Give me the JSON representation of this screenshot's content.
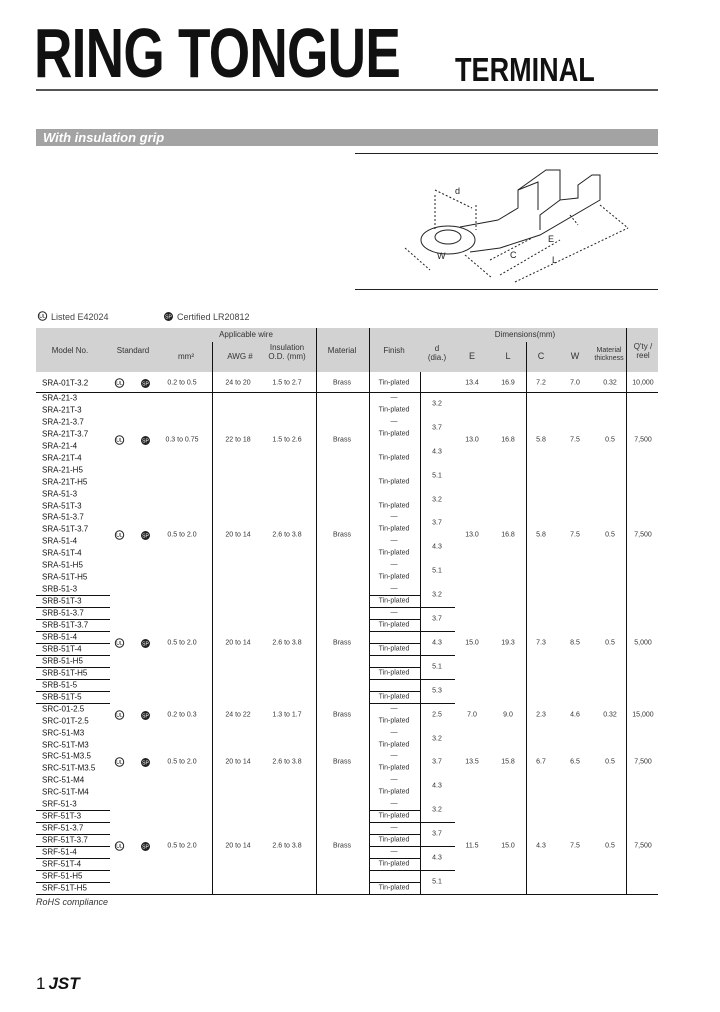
{
  "header": {
    "title": "RING TONGUE",
    "subtitle": "TERMINAL"
  },
  "section": {
    "label": "With insulation grip"
  },
  "figure": {
    "labels": {
      "d": "d",
      "C": "C",
      "E": "E",
      "L": "L",
      "W": "W"
    }
  },
  "legend": {
    "ul": "Listed E42024",
    "csa": "Certified LR20812"
  },
  "table": {
    "headers": {
      "model": "Model No.",
      "standard": "Standard",
      "wire_group": "Applicable wire",
      "mm2": "mm²",
      "awg": "AWG #",
      "insulation": "Insulation O.D. (mm)",
      "material": "Material",
      "finish": "Finish",
      "dims_group": "Dimensions(mm)",
      "d": "d (dia.)",
      "E": "E",
      "L": "L",
      "C": "C",
      "W": "W",
      "thickness": "Material thickness",
      "qty": "Q'ty / reel"
    },
    "first_row": {
      "model": "SRA-01T-3.2",
      "standard": [
        "UL",
        "CSA"
      ],
      "mm2": "0.2 to 0.5",
      "awg": "24 to 20",
      "insulation": "1.5 to 2.7",
      "material": "Brass",
      "finish": "Tin-plated",
      "E": "13.4",
      "L": "16.9",
      "C": "7.2",
      "W": "7.0",
      "thickness": "0.32",
      "qty": "10,000"
    },
    "groups": [
      {
        "standard": [
          "UL",
          "CSA"
        ],
        "mm2": "0.3 to 0.75",
        "awg": "22 to 18",
        "insulation": "1.5 to 2.6",
        "material": "Brass",
        "E": "13.0",
        "L": "16.8",
        "C": "5.8",
        "W": "7.5",
        "thickness": "0.5",
        "qty": "7,500",
        "ruled": false,
        "models": [
          {
            "model": "SRA-21-3",
            "finish": "—",
            "d": "3.2"
          },
          {
            "model": "SRA-21T-3",
            "finish": "Tin-plated"
          },
          {
            "model": "SRA-21-3.7",
            "finish": "—",
            "d": "3.7"
          },
          {
            "model": "SRA-21T-3.7",
            "finish": "Tin-plated"
          },
          {
            "model": "SRA-21-4",
            "finish": "",
            "d": "4.3"
          },
          {
            "model": "SRA-21T-4",
            "finish": "Tin-plated"
          },
          {
            "model": "SRA-21-H5",
            "finish": "",
            "d": "5.1"
          },
          {
            "model": "SRA-21T-H5",
            "finish": "Tin-plated"
          }
        ]
      },
      {
        "standard": [
          "UL",
          "CSA"
        ],
        "mm2": "0.5 to 2.0",
        "awg": "20 to 14",
        "insulation": "2.6 to 3.8",
        "material": "Brass",
        "E": "13.0",
        "L": "16.8",
        "C": "5.8",
        "W": "7.5",
        "thickness": "0.5",
        "qty": "7,500",
        "ruled": false,
        "models": [
          {
            "model": "SRA-51-3",
            "finish": "",
            "d": "3.2"
          },
          {
            "model": "SRA-51T-3",
            "finish": "Tin-plated"
          },
          {
            "model": "SRA-51-3.7",
            "finish": "—",
            "d": "3.7"
          },
          {
            "model": "SRA-51T-3.7",
            "finish": "Tin-plated"
          },
          {
            "model": "SRA-51-4",
            "finish": "—",
            "d": "4.3"
          },
          {
            "model": "SRA-51T-4",
            "finish": "Tin-plated"
          },
          {
            "model": "SRA-51-H5",
            "finish": "—",
            "d": "5.1"
          },
          {
            "model": "SRA-51T-H5",
            "finish": "Tin-plated"
          }
        ]
      },
      {
        "standard": [
          "UL",
          "CSA"
        ],
        "mm2": "0.5 to 2.0",
        "awg": "20 to 14",
        "insulation": "2.6 to 3.8",
        "material": "Brass",
        "E": "15.0",
        "L": "19.3",
        "C": "7.3",
        "W": "8.5",
        "thickness": "0.5",
        "qty": "5,000",
        "ruled": true,
        "models": [
          {
            "model": "SRB-51-3",
            "finish": "—",
            "d": "3.2"
          },
          {
            "model": "SRB-51T-3",
            "finish": "Tin-plated"
          },
          {
            "model": "SRB-51-3.7",
            "finish": "—",
            "d": "3.7"
          },
          {
            "model": "SRB-51T-3.7",
            "finish": "Tin-plated"
          },
          {
            "model": "SRB-51-4",
            "finish": "",
            "d": "4.3"
          },
          {
            "model": "SRB-51T-4",
            "finish": "Tin-plated"
          },
          {
            "model": "SRB-51-H5",
            "finish": "",
            "d": "5.1"
          },
          {
            "model": "SRB-51T-H5",
            "finish": "Tin-plated"
          },
          {
            "model": "SRB-51-5",
            "finish": "",
            "d": "5.3"
          },
          {
            "model": "SRB-51T-5",
            "finish": "Tin-plated"
          }
        ]
      },
      {
        "standard": [
          "UL",
          "CSA"
        ],
        "mm2": "0.2 to 0.3",
        "awg": "24 to 22",
        "insulation": "1.3 to 1.7",
        "material": "Brass",
        "E": "7.0",
        "L": "9.0",
        "C": "2.3",
        "W": "4.6",
        "thickness": "0.32",
        "qty": "15,000",
        "ruled": false,
        "models": [
          {
            "model": "SRC-01-2.5",
            "finish": "—",
            "d": "2.5"
          },
          {
            "model": "SRC-01T-2.5",
            "finish": "Tin-plated"
          }
        ]
      },
      {
        "standard": [
          "UL",
          "CSA"
        ],
        "mm2": "0.5 to 2.0",
        "awg": "20 to 14",
        "insulation": "2.6 to 3.8",
        "material": "Brass",
        "E": "13.5",
        "L": "15.8",
        "C": "6.7",
        "W": "6.5",
        "thickness": "0.5",
        "qty": "7,500",
        "ruled": false,
        "models": [
          {
            "model": "SRC-51-M3",
            "finish": "—",
            "d": "3.2"
          },
          {
            "model": "SRC-51T-M3",
            "finish": "Tin-plated"
          },
          {
            "model": "SRC-51-M3.5",
            "finish": "—",
            "d": "3.7"
          },
          {
            "model": "SRC-51T-M3.5",
            "finish": "Tin-plated"
          },
          {
            "model": "SRC-51-M4",
            "finish": "—",
            "d": "4.3"
          },
          {
            "model": "SRC-51T-M4",
            "finish": "Tin-plated"
          }
        ]
      },
      {
        "standard": [
          "UL",
          "CSA"
        ],
        "mm2": "0.5 to 2.0",
        "awg": "20 to 14",
        "insulation": "2.6 to 3.8",
        "material": "Brass",
        "E": "11.5",
        "L": "15.0",
        "C": "4.3",
        "W": "7.5",
        "thickness": "0.5",
        "qty": "7,500",
        "ruled": true,
        "models": [
          {
            "model": "SRF-51-3",
            "finish": "—",
            "d": "3.2"
          },
          {
            "model": "SRF-51T-3",
            "finish": "Tin-plated"
          },
          {
            "model": "SRF-51-3.7",
            "finish": "—",
            "d": "3.7"
          },
          {
            "model": "SRF-51T-3.7",
            "finish": "Tin-plated"
          },
          {
            "model": "SRF-51-4",
            "finish": "—",
            "d": "4.3"
          },
          {
            "model": "SRF-51T-4",
            "finish": "Tin-plated"
          },
          {
            "model": "SRF-51-H5",
            "finish": "",
            "d": "5.1"
          },
          {
            "model": "SRF-51T-H5",
            "finish": "Tin-plated"
          }
        ]
      }
    ]
  },
  "notes": {
    "rohs": "RoHS compliance"
  },
  "footer": {
    "page": "1",
    "brand": "JST"
  }
}
